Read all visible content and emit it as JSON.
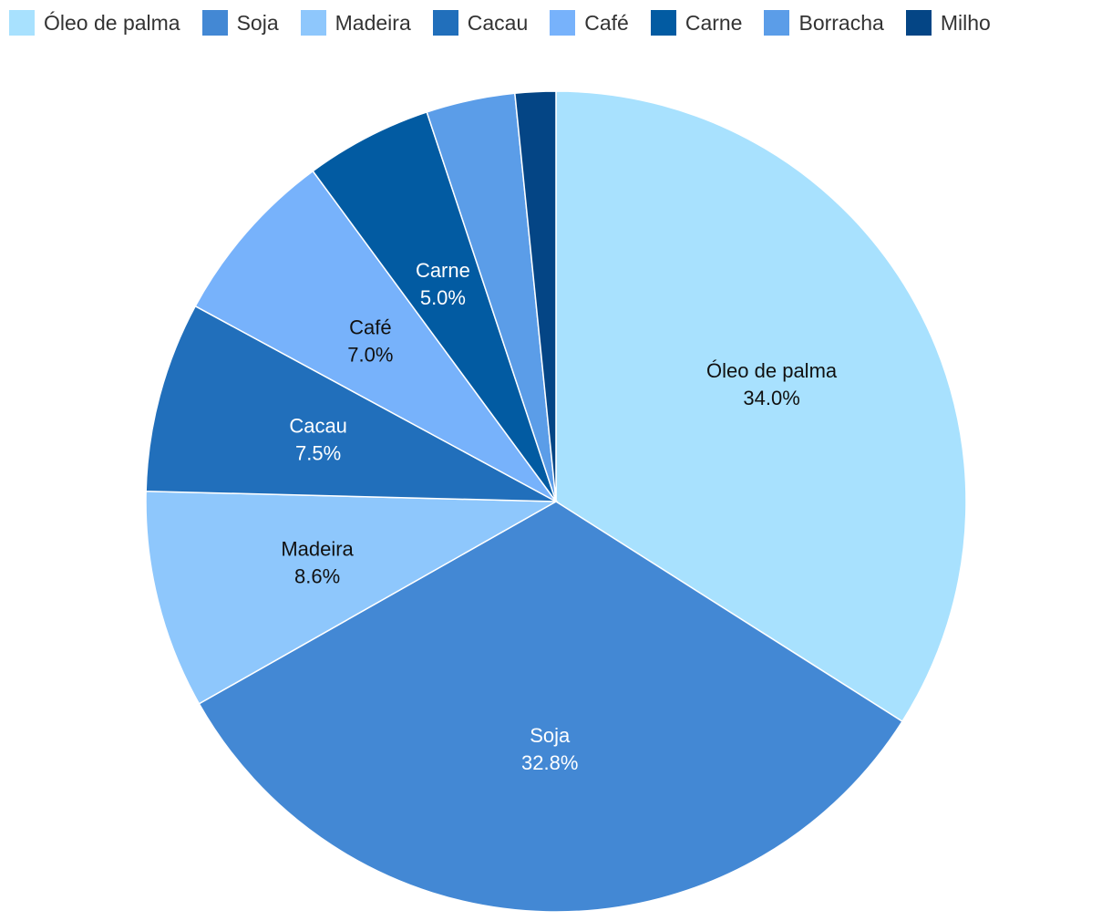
{
  "chart_data": {
    "type": "pie",
    "title": "",
    "legend_position": "top-left",
    "slices": [
      {
        "label": "Óleo de palma",
        "value": 34.0,
        "value_label": "34.0%",
        "color": "#a8e1fe",
        "show_label": true,
        "label_color": "#111111"
      },
      {
        "label": "Soja",
        "value": 32.8,
        "value_label": "32.8%",
        "color": "#4388d4",
        "show_label": true,
        "label_color": "#ffffff"
      },
      {
        "label": "Madeira",
        "value": 8.6,
        "value_label": "8.6%",
        "color": "#8ec7fc",
        "show_label": true,
        "label_color": "#111111"
      },
      {
        "label": "Cacau",
        "value": 7.5,
        "value_label": "7.5%",
        "color": "#216fbb",
        "show_label": true,
        "label_color": "#ffffff"
      },
      {
        "label": "Café",
        "value": 7.0,
        "value_label": "7.0%",
        "color": "#77b2fb",
        "show_label": true,
        "label_color": "#111111"
      },
      {
        "label": "Carne",
        "value": 5.0,
        "value_label": "5.0%",
        "color": "#025ba2",
        "show_label": true,
        "label_color": "#ffffff"
      },
      {
        "label": "Borracha",
        "value": 3.5,
        "value_label": "",
        "color": "#5b9de8",
        "show_label": false,
        "label_color": "#ffffff"
      },
      {
        "label": "Milho",
        "value": 1.6,
        "value_label": "",
        "color": "#044585",
        "show_label": false,
        "label_color": "#ffffff"
      }
    ]
  }
}
